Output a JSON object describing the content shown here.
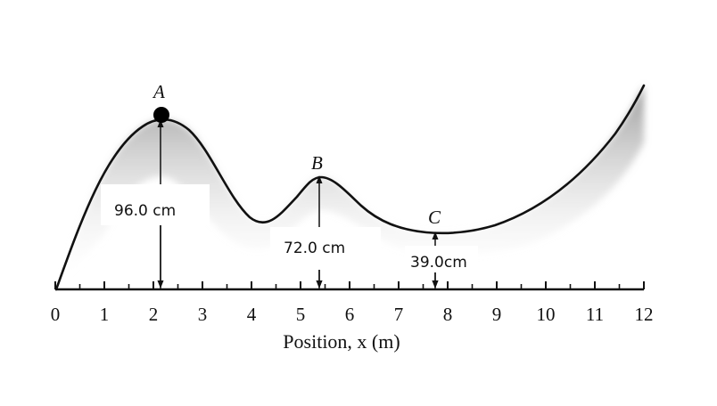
{
  "diagram": {
    "points": [
      {
        "id": "A",
        "label": "A",
        "x": 2.1,
        "height_cm": 96.0,
        "height_label": "96.0 cm"
      },
      {
        "id": "B",
        "label": "B",
        "x": 5.4,
        "height_cm": 72.0,
        "height_label": "72.0 cm"
      },
      {
        "id": "C",
        "label": "C",
        "x": 7.75,
        "height_cm": 39.0,
        "height_label": "39.0cm"
      }
    ],
    "axis": {
      "label": "Position, x (m)",
      "min": 0,
      "max": 12,
      "ticks": [
        "0",
        "1",
        "2",
        "3",
        "4",
        "5",
        "6",
        "7",
        "8",
        "9",
        "10",
        "11",
        "12"
      ]
    },
    "colors": {
      "track": "#111111",
      "shadow": "#b0b0b0",
      "ball": "#000000"
    }
  }
}
